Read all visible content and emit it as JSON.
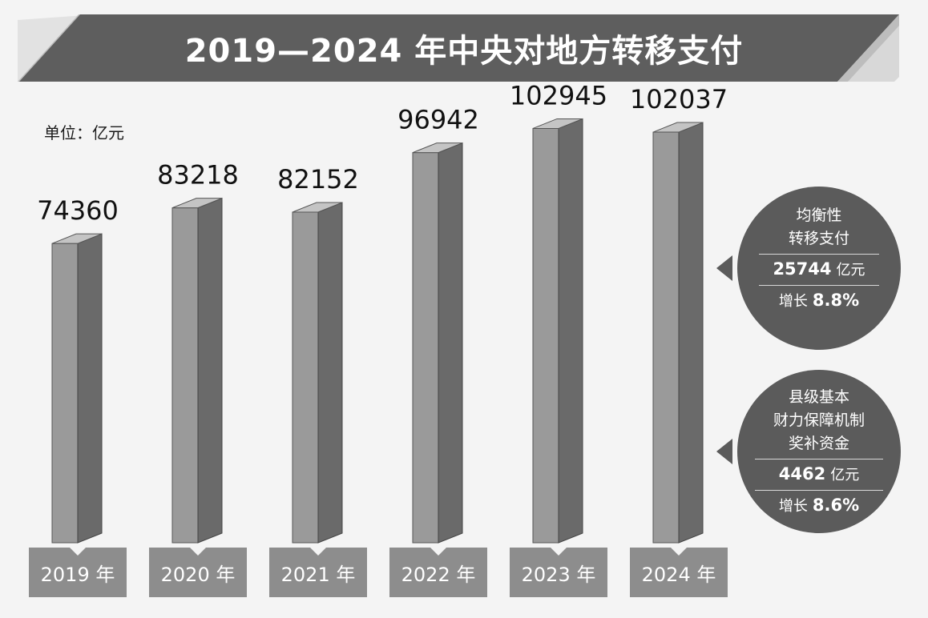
{
  "title": "2019—2024 年中央对地方转移支付",
  "unit_label": "单位：亿元",
  "chart_data": {
    "type": "bar",
    "title": "2019—2024 年中央对地方转移支付",
    "ylabel": "单位：亿元",
    "categories": [
      "2019 年",
      "2020 年",
      "2021 年",
      "2022 年",
      "2023 年",
      "2024 年"
    ],
    "values": [
      74360,
      83218,
      82152,
      96942,
      102945,
      102037
    ],
    "value_labels": [
      "74360",
      "83218",
      "82152",
      "96942",
      "102945",
      "102037"
    ],
    "ylim": [
      0,
      110000
    ],
    "grid": false
  },
  "callouts": [
    {
      "title_lines": [
        "均衡性",
        "转移支付"
      ],
      "amount": "25744",
      "amount_unit": "亿元",
      "growth_label": "增长",
      "growth_value": "8.8%"
    },
    {
      "title_lines": [
        "县级基本",
        "财力保障机制",
        "奖补资金"
      ],
      "amount": "4462",
      "amount_unit": "亿元",
      "growth_label": "增长",
      "growth_value": "8.6%"
    }
  ],
  "colors": {
    "banner": "#5e5e5e",
    "bar_front": "#9a9a9a",
    "bar_side": "#6a6a6a",
    "bar_top": "#c4c4c4",
    "year_box": "#8d8d8d",
    "bubble": "#5b5b5b"
  }
}
